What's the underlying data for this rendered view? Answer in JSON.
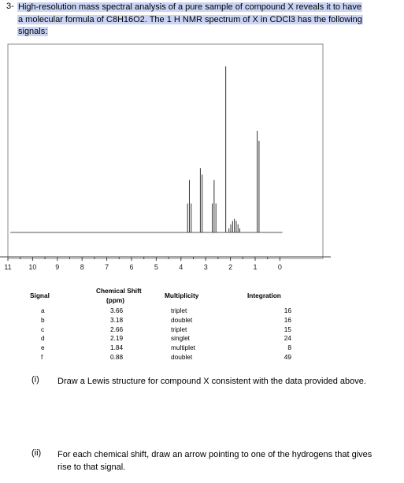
{
  "question": {
    "number": "3-",
    "text": "High-resolution mass spectral analysis of a pure sample of compound X reveals it to have a molecular formula of C8H16O2. The 1 H NMR spectrum of X in CDCl3 has the following signals:"
  },
  "chart_data": {
    "type": "line",
    "title": "",
    "xlabel": "",
    "ylabel": "",
    "xlim": [
      11,
      -0.2
    ],
    "ylim": [
      0,
      100
    ],
    "x_ticks": [
      "11",
      "10",
      "9",
      "8",
      "7",
      "6",
      "5",
      "4",
      "3",
      "2",
      "1",
      "0"
    ],
    "grid": false,
    "peaks": [
      {
        "x": 3.66,
        "height": 31,
        "lines": 3
      },
      {
        "x": 3.18,
        "height": 38,
        "lines": 2
      },
      {
        "x": 2.66,
        "height": 31,
        "lines": 3
      },
      {
        "x": 2.19,
        "height": 98,
        "lines": 1
      },
      {
        "x": 1.84,
        "height": 8,
        "lines": 7
      },
      {
        "x": 0.88,
        "height": 60,
        "lines": 2
      }
    ]
  },
  "table": {
    "headers": {
      "signal": "Signal",
      "shift": "Chemical Shift",
      "shift_unit": "(ppm)",
      "multiplicity": "Multiplicity",
      "integration": "Integration"
    },
    "rows": [
      {
        "signal": "a",
        "shift": "3.66",
        "multiplicity": "triplet",
        "integration": "16"
      },
      {
        "signal": "b",
        "shift": "3.18",
        "multiplicity": "doublet",
        "integration": "16"
      },
      {
        "signal": "c",
        "shift": "2.66",
        "multiplicity": "triplet",
        "integration": "15"
      },
      {
        "signal": "d",
        "shift": "2.19",
        "multiplicity": "singlet",
        "integration": "24"
      },
      {
        "signal": "e",
        "shift": "1.84",
        "multiplicity": "multiplet",
        "integration": "8"
      },
      {
        "signal": "f",
        "shift": "0.88",
        "multiplicity": "doublet",
        "integration": "49"
      }
    ]
  },
  "parts": [
    {
      "label": "(i)",
      "text": "Draw a Lewis structure for compound X consistent with the data provided above."
    },
    {
      "label": "(ii)",
      "text": "For each chemical shift, draw an arrow pointing to one of the hydrogens that gives rise to that signal."
    }
  ]
}
